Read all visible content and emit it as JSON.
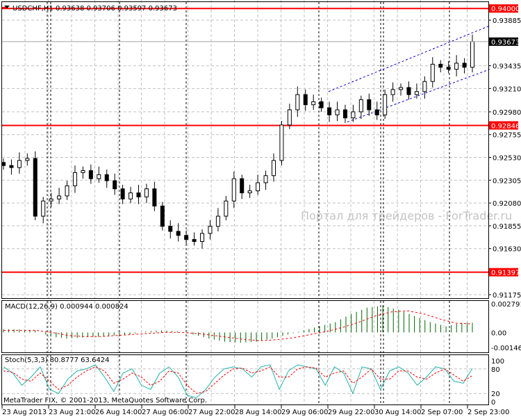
{
  "header": {
    "symbol": "USDCHF,H1",
    "ohlc": "0.93638 0.93706 0.93597 0.93673"
  },
  "watermark": "Портал для трейдеров - ForTrader.ru",
  "copyright": "MetaTrader FIX, © 2001-2013, MetaQuotes Software Corp.",
  "colors": {
    "background": "#ffffff",
    "candle": "#000000",
    "level_line": "#ff0000",
    "channel": "#0000cc",
    "macd_hist": "#006400",
    "macd_signal": "#ff0000",
    "stoch_main": "#20b2aa",
    "stoch_signal": "#ff0000",
    "grid": "#c0c0c0"
  },
  "chart_data": [
    {
      "type": "candlestick",
      "title": "USDCHF,H1",
      "price_axis_ticks": [
        "0.93885",
        "0.93435",
        "0.93210",
        "0.92980",
        "0.92755",
        "0.92530",
        "0.92305",
        "0.92080",
        "0.91855",
        "0.91630",
        "0.91175"
      ],
      "ylim": [
        0.9112,
        0.9412
      ],
      "time_axis_ticks": [
        "23 Aug 2013",
        "23 Aug 21:00",
        "26 Aug 14:00",
        "27 Aug 06:00",
        "27 Aug 22:00",
        "28 Aug 14:00",
        "29 Aug 06:00",
        "29 Aug 22:00",
        "30 Aug 14:00",
        "2 Sep 07:00",
        "2 Sep 23:00"
      ],
      "closes": [
        0.9245,
        0.9243,
        0.925,
        0.9252,
        0.9195,
        0.921,
        0.9212,
        0.9215,
        0.9225,
        0.9238,
        0.924,
        0.9232,
        0.9236,
        0.923,
        0.9222,
        0.9212,
        0.9218,
        0.9214,
        0.9222,
        0.9205,
        0.9185,
        0.918,
        0.9176,
        0.9172,
        0.917,
        0.9178,
        0.9185,
        0.9195,
        0.921,
        0.9232,
        0.9218,
        0.922,
        0.9228,
        0.9235,
        0.925,
        0.9285,
        0.93,
        0.9315,
        0.9305,
        0.9308,
        0.9302,
        0.9295,
        0.93,
        0.9292,
        0.9298,
        0.931,
        0.93,
        0.9295,
        0.9315,
        0.932,
        0.9322,
        0.9315,
        0.9318,
        0.9328,
        0.9345,
        0.9342,
        0.934,
        0.9346,
        0.9342,
        0.93673
      ],
      "last_price": "0.93673",
      "horizontal_levels": [
        "0.94000",
        "0.92846",
        "0.91397"
      ],
      "channel": {
        "upper": [
          0.9318,
          0.9383
        ],
        "lower": [
          0.9288,
          0.934
        ]
      },
      "grid": true
    },
    {
      "type": "bar",
      "title": "MACD(12,26,9) 0.000944 0.000824",
      "axis_ticks": [
        "0.002791",
        "0.00",
        "-0.001467"
      ],
      "ylim": [
        -0.001467,
        0.002791
      ],
      "histogram": [
        0.0003,
        0.0003,
        0.0002,
        -0.0004,
        -0.0006,
        -0.0005,
        -0.0004,
        -0.0003,
        -0.0002,
        0.0001,
        0.0002,
        0.0001,
        -0.0002,
        -0.0006,
        -0.0009,
        -0.001,
        -0.0009,
        -0.0006,
        -0.0002,
        0.0002,
        0.0006,
        0.001,
        0.0018,
        0.0024,
        0.0026,
        0.0022,
        0.0016,
        0.001,
        0.0006,
        0.000944
      ],
      "signal": [
        0.0002,
        0.0002,
        0.0002,
        0.0,
        -0.0003,
        -0.0004,
        -0.0004,
        -0.0003,
        -0.0002,
        -0.0001,
        0.0,
        0.0,
        -0.0001,
        -0.0003,
        -0.0005,
        -0.0007,
        -0.0008,
        -0.0007,
        -0.0005,
        -0.0002,
        0.0001,
        0.0005,
        0.001,
        0.0016,
        0.002,
        0.0021,
        0.0018,
        0.0013,
        0.0009,
        0.000824
      ]
    },
    {
      "type": "line",
      "title": "Stoch(5,3,3) 80.8777 63.6424",
      "axis_ticks": [
        "100",
        "80",
        "20",
        "0"
      ],
      "ylim": [
        0,
        100
      ],
      "main": [
        85,
        70,
        40,
        60,
        85,
        30,
        20,
        55,
        75,
        80,
        90,
        60,
        25,
        70,
        80,
        40,
        30,
        70,
        85,
        60,
        15,
        10,
        30,
        60,
        80,
        85,
        80,
        60,
        85,
        90,
        30,
        75,
        90,
        85,
        80,
        40,
        85,
        70,
        20,
        85,
        80,
        30,
        75,
        85,
        70,
        40,
        60,
        85,
        80,
        50,
        45,
        80.8777
      ],
      "signal": [
        75,
        72,
        55,
        50,
        70,
        50,
        30,
        40,
        60,
        75,
        85,
        75,
        45,
        55,
        70,
        60,
        40,
        50,
        75,
        70,
        40,
        20,
        25,
        45,
        65,
        80,
        82,
        70,
        75,
        85,
        60,
        60,
        80,
        85,
        82,
        60,
        70,
        75,
        45,
        60,
        80,
        55,
        55,
        75,
        75,
        60,
        55,
        70,
        80,
        65,
        50,
        63.6424
      ]
    }
  ]
}
